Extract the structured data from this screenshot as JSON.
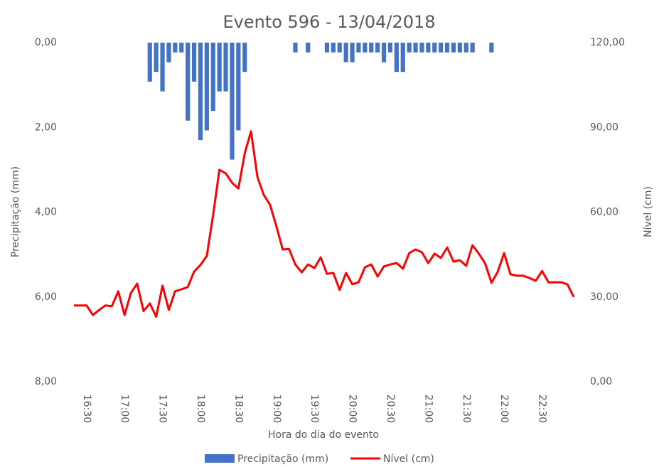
{
  "chart_data": {
    "type": "bar_line",
    "title": "Evento 596 - 13/04/2018",
    "x_label": "Hora do dia do evento",
    "y_label": "Precipitação (mm)",
    "y2_label": "Nível (cm)",
    "categories": [
      null,
      null,
      "16:30",
      null,
      null,
      null,
      null,
      null,
      "17:00",
      null,
      null,
      null,
      null,
      null,
      "17:30",
      null,
      null,
      null,
      null,
      null,
      "18:00",
      null,
      null,
      null,
      null,
      null,
      "18:30",
      null,
      null,
      null,
      null,
      null,
      "19:00",
      null,
      null,
      null,
      null,
      null,
      "19:30",
      null,
      null,
      null,
      null,
      null,
      "20:00",
      null,
      null,
      null,
      null,
      null,
      "20:30",
      null,
      null,
      null,
      null,
      null,
      "21:00",
      null,
      null,
      null,
      null,
      null,
      "21:30",
      null,
      null,
      null,
      null,
      null,
      "22:00",
      null,
      null,
      null,
      null,
      null,
      "22:30",
      null,
      null,
      null,
      null,
      null
    ],
    "series": [
      {
        "name": "Precipitação (mm)",
        "type": "bar",
        "color": "#4472c4",
        "axis": "y",
        "values": [
          0,
          0,
          0,
          0,
          0,
          0,
          0,
          0,
          0,
          0,
          0,
          0,
          0.92,
          0.69,
          1.15,
          0.46,
          0.23,
          0.23,
          1.84,
          0.92,
          2.3,
          2.07,
          1.61,
          1.15,
          1.15,
          2.76,
          2.07,
          0.69,
          0,
          0,
          0,
          0,
          0,
          0,
          0,
          0.23,
          0,
          0.23,
          0,
          0,
          0.23,
          0.23,
          0.23,
          0.46,
          0.46,
          0.23,
          0.23,
          0.23,
          0.23,
          0.46,
          0.23,
          0.69,
          0.69,
          0.23,
          0.23,
          0.23,
          0.23,
          0.23,
          0.23,
          0.23,
          0.23,
          0.23,
          0.23,
          0.23,
          0,
          0,
          0.23,
          0,
          0,
          0,
          0,
          0,
          0,
          0,
          0,
          0,
          0,
          0,
          0,
          0
        ]
      },
      {
        "name": "Nível (cm)",
        "type": "line",
        "color": "#ff0000",
        "axis": "y2",
        "values": [
          27,
          27,
          27,
          23.6,
          25.4,
          27,
          26.7,
          32,
          23.6,
          31.4,
          34.7,
          25,
          27.7,
          23,
          34,
          25.4,
          32,
          32.7,
          33.5,
          39,
          41.3,
          44.5,
          59,
          75,
          73.7,
          70.4,
          68.4,
          80.8,
          88.6,
          72.5,
          66.2,
          62.6,
          55,
          46.8,
          47,
          41.5,
          38.7,
          41.5,
          40.2,
          44,
          38.2,
          38.5,
          32.5,
          38.5,
          34.5,
          35.2,
          40.5,
          41.5,
          37.2,
          40.8,
          41.5,
          42,
          40,
          45.5,
          46.8,
          45.8,
          42,
          45.3,
          43.8,
          47.5,
          42.5,
          43,
          41,
          48.3,
          45.3,
          41.8,
          35,
          39,
          45.5,
          38,
          37.5,
          37.5,
          36.7,
          35.7,
          39.2,
          35.2,
          35.2,
          35.2,
          34.5,
          30
        ]
      }
    ],
    "ylim": [
      0,
      8
    ],
    "y_inverted": true,
    "yticks": [
      {
        "value": 0,
        "label": "0,00"
      },
      {
        "value": 2,
        "label": "2,00"
      },
      {
        "value": 4,
        "label": "4,00"
      },
      {
        "value": 6,
        "label": "6,00"
      },
      {
        "value": 8,
        "label": "8,00"
      }
    ],
    "y2lim": [
      0,
      120
    ],
    "y2ticks": [
      {
        "value": 0,
        "label": "0,00"
      },
      {
        "value": 30,
        "label": "30,00"
      },
      {
        "value": 60,
        "label": "60,00"
      },
      {
        "value": 90,
        "label": "90,00"
      },
      {
        "value": 120,
        "label": "120,00"
      }
    ],
    "grid": false,
    "legend": "bottom"
  }
}
